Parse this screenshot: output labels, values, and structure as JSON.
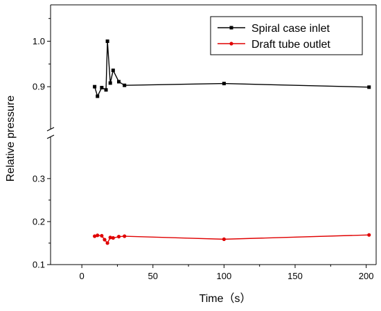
{
  "chart_data": {
    "type": "line",
    "title": "",
    "xlabel": "Time（s）",
    "ylabel": "Relative pressure",
    "xlim": [
      -22,
      207
    ],
    "x_ticks": [
      0,
      50,
      100,
      150,
      200
    ],
    "x_tick_labels": [
      "0",
      "50",
      "100",
      "150",
      "200"
    ],
    "y_axis_broken": true,
    "y_segments": [
      {
        "range": [
          0.1,
          0.34
        ],
        "ticks": [
          0.1,
          0.2,
          0.3
        ],
        "tick_labels": [
          "0.1",
          "0.2",
          "0.3"
        ]
      },
      {
        "range": [
          0.85,
          1.08
        ],
        "ticks": [
          0.9,
          1.0
        ],
        "tick_labels": [
          "0.9",
          "1.0"
        ]
      }
    ],
    "legend_position": "top-right",
    "grid": false,
    "series": [
      {
        "name": "Spiral case inlet",
        "color": "#000000",
        "marker": "square",
        "x": [
          9,
          11,
          14,
          17,
          18,
          20,
          22,
          26,
          30,
          100,
          202
        ],
        "y": [
          0.9,
          0.879,
          0.898,
          0.893,
          1.0,
          0.908,
          0.936,
          0.911,
          0.903,
          0.907,
          0.899
        ]
      },
      {
        "name": "Draft tube outlet",
        "color": "#e00000",
        "marker": "circle",
        "x": [
          9,
          11,
          14,
          16,
          18,
          20,
          22,
          26,
          30,
          100,
          202
        ],
        "y": [
          0.166,
          0.168,
          0.167,
          0.158,
          0.15,
          0.163,
          0.162,
          0.165,
          0.166,
          0.159,
          0.169
        ]
      }
    ]
  }
}
